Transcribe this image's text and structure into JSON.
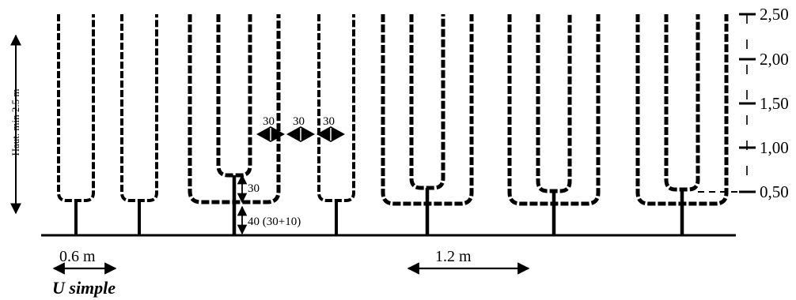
{
  "height_label": "Haut. min 2.5 m",
  "scale_ticks": [
    "2,50",
    "2,00",
    "1,50",
    "1,00",
    "0,50"
  ],
  "spacing_labels": [
    "30",
    "30",
    "30"
  ],
  "dim_arm_height": "30",
  "dim_trunk_height": "40 (30+10)",
  "width_simple": "0.6 m",
  "width_double": "1.2 m",
  "caption": "U simple"
}
